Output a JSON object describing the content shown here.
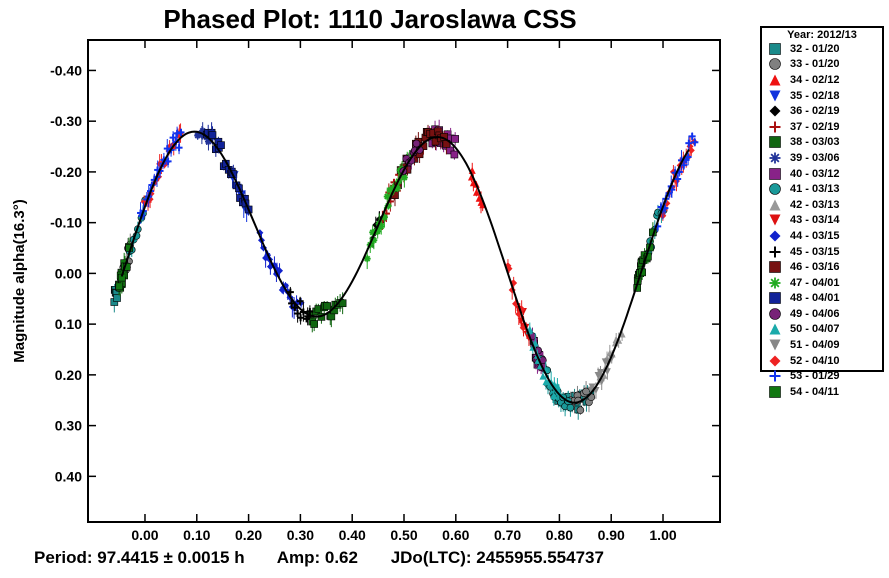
{
  "chart_data": {
    "type": "scatter",
    "title": "Phased Plot: 1110 Jaroslawa CSS",
    "ylabel": "Magnitude alpha(16.3°)",
    "xlim": [
      -0.11,
      1.11
    ],
    "ylim": [
      -0.46,
      0.49
    ],
    "y_inverted": true,
    "x_ticks": [
      "0.00",
      "0.10",
      "0.20",
      "0.30",
      "0.40",
      "0.50",
      "0.60",
      "0.70",
      "0.80",
      "0.90",
      "1.00"
    ],
    "y_ticks": [
      "-0.40",
      "-0.30",
      "-0.20",
      "-0.10",
      "0.00",
      "0.10",
      "0.20",
      "0.30",
      "0.40"
    ],
    "legend_title": "Year: 2012/13",
    "legend_placement": "right",
    "series": [
      {
        "name": "32 - 01/20",
        "color": "#1a8a8a",
        "marker": "square",
        "segments": [
          [
            0.8,
            0.86
          ],
          [
            -0.06,
            -0.05
          ]
        ]
      },
      {
        "name": "33 - 01/20",
        "color": "#808080",
        "marker": "circle",
        "segments": [
          [
            0.82,
            0.86
          ],
          [
            -0.04,
            -0.03
          ]
        ]
      },
      {
        "name": "34 - 02/12",
        "color": "#ee1111",
        "marker": "triangle-up",
        "segments": [
          [
            0.63,
            0.65
          ]
        ]
      },
      {
        "name": "35 - 02/18",
        "color": "#1133dd",
        "marker": "triangle-down",
        "segments": [
          [
            0.17,
            0.2
          ]
        ]
      },
      {
        "name": "36 - 02/19",
        "color": "#000000",
        "marker": "diamond",
        "segments": [
          [
            0.44,
            0.46
          ]
        ]
      },
      {
        "name": "37 - 02/19",
        "color": "#aa1111",
        "marker": "plus",
        "segments": [
          [
            0.46,
            0.5
          ]
        ]
      },
      {
        "name": "38 - 03/03",
        "color": "#116611",
        "marker": "square",
        "segments": [
          [
            0.32,
            0.38
          ],
          [
            -0.05,
            -0.04
          ],
          [
            0.95,
            0.96
          ]
        ]
      },
      {
        "name": "39 - 03/06",
        "color": "#223399",
        "marker": "asterisk",
        "segments": [
          [
            0.1,
            0.13
          ]
        ]
      },
      {
        "name": "40 - 03/12",
        "color": "#882288",
        "marker": "square",
        "segments": [
          [
            0.55,
            0.6
          ],
          [
            0.75,
            0.76
          ]
        ]
      },
      {
        "name": "41 - 03/13",
        "color": "#1a9999",
        "marker": "circle",
        "segments": [
          [
            0.76,
            0.82
          ],
          [
            0.97,
            1.0
          ],
          [
            -0.03,
            0.0
          ]
        ]
      },
      {
        "name": "42 - 03/13",
        "color": "#999999",
        "marker": "triangle-up",
        "segments": [
          [
            0.88,
            0.92
          ]
        ]
      },
      {
        "name": "43 - 03/14",
        "color": "#dd1111",
        "marker": "triangle-down",
        "segments": [
          [
            0.72,
            0.74
          ]
        ]
      },
      {
        "name": "44 - 03/15",
        "color": "#1122cc",
        "marker": "diamond",
        "segments": [
          [
            0.22,
            0.3
          ]
        ]
      },
      {
        "name": "45 - 03/15",
        "color": "#000000",
        "marker": "plus",
        "segments": [
          [
            0.28,
            0.32
          ]
        ]
      },
      {
        "name": "46 - 03/16",
        "color": "#771111",
        "marker": "square",
        "segments": [
          [
            0.48,
            0.58
          ]
        ]
      },
      {
        "name": "47 - 04/01",
        "color": "#22aa22",
        "marker": "asterisk",
        "segments": [
          [
            0.43,
            0.51
          ]
        ]
      },
      {
        "name": "48 - 04/01",
        "color": "#112299",
        "marker": "square",
        "segments": [
          [
            0.12,
            0.2
          ]
        ]
      },
      {
        "name": "49 - 04/06",
        "color": "#772277",
        "marker": "circle",
        "segments": [
          [
            0.5,
            0.53
          ],
          [
            0.75,
            0.77
          ]
        ]
      },
      {
        "name": "50 - 04/07",
        "color": "#1aaaaa",
        "marker": "triangle-up",
        "segments": [
          [
            0.74,
            0.8
          ]
        ]
      },
      {
        "name": "51 - 04/09",
        "color": "#888888",
        "marker": "triangle-down",
        "segments": [
          [
            0.86,
            0.9
          ]
        ]
      },
      {
        "name": "52 - 04/10",
        "color": "#ee2222",
        "marker": "diamond",
        "segments": [
          [
            0.0,
            0.07
          ],
          [
            1.0,
            1.06
          ],
          [
            0.7,
            0.73
          ]
        ]
      },
      {
        "name": "53 - 01/29",
        "color": "#1133ee",
        "marker": "plus",
        "segments": [
          [
            -0.01,
            0.07
          ],
          [
            0.99,
            1.06
          ]
        ]
      },
      {
        "name": "54 - 04/11",
        "color": "#117711",
        "marker": "square",
        "segments": [
          [
            -0.05,
            -0.03
          ],
          [
            0.95,
            0.98
          ]
        ]
      }
    ]
  },
  "footer": {
    "period": "Period: 97.4415 ± 0.0015 h",
    "amp": "Amp: 0.62",
    "jdo": "JDo(LTC): 2455955.554737"
  },
  "colors": {
    "axis": "#000000",
    "fit_curve": "#000000"
  }
}
